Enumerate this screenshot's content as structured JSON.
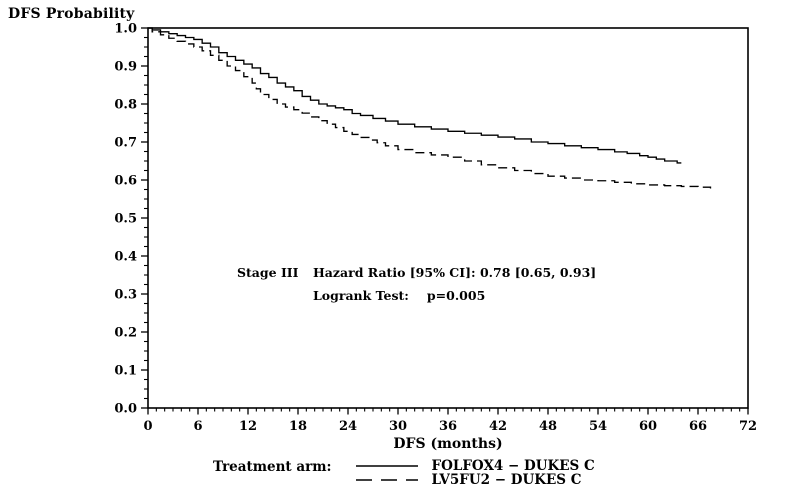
{
  "page": {
    "background": "#ffffff",
    "foreground": "#000000"
  },
  "chart_data": {
    "type": "line",
    "subtype": "kaplan-meier-step",
    "title": "DFS Probability",
    "xlabel": "DFS (months)",
    "ylabel": "DFS Probability",
    "xlim": [
      0,
      72
    ],
    "ylim": [
      0.0,
      1.0
    ],
    "x_major_ticks": [
      0,
      6,
      12,
      18,
      24,
      30,
      36,
      42,
      48,
      54,
      60,
      66,
      72
    ],
    "x_minor_step": 1,
    "y_tick_labels": [
      "1.0",
      "0.9",
      "0.8",
      "0.7",
      "0.6",
      "0.5",
      "0.4",
      "0.3",
      "0.2",
      "0.1",
      "0.0"
    ],
    "y_major_step": 0.1,
    "y_minor_step": 0.025,
    "grid": false,
    "frame": true,
    "legend_position": "bottom",
    "line_color": "#000000",
    "annotation": {
      "stage_label": "Stage III",
      "hazard_text": "Hazard Ratio [95% CI]: 0.78 [0.65, 0.93]",
      "logrank_label": "Logrank Test:",
      "logrank_value": "p=0.005"
    },
    "legend": {
      "title": "Treatment arm:",
      "entries": [
        {
          "label": "FOLFOX4 − DUKES C",
          "line_style": "solid"
        },
        {
          "label": "LV5FU2 − DUKES C",
          "line_style": "dashed"
        }
      ]
    },
    "series": [
      {
        "name": "FOLFOX4 − DUKES C",
        "id": "folfox4-curve",
        "style": "solid",
        "points": [
          [
            0,
            1.0
          ],
          [
            0.5,
            0.995
          ],
          [
            1.5,
            0.99
          ],
          [
            2.5,
            0.985
          ],
          [
            3.5,
            0.98
          ],
          [
            4.5,
            0.975
          ],
          [
            5.5,
            0.97
          ],
          [
            6.5,
            0.96
          ],
          [
            7.5,
            0.95
          ],
          [
            8.5,
            0.935
          ],
          [
            9.5,
            0.925
          ],
          [
            10.5,
            0.915
          ],
          [
            11.5,
            0.905
          ],
          [
            12.5,
            0.895
          ],
          [
            13.5,
            0.88
          ],
          [
            14.5,
            0.87
          ],
          [
            15.5,
            0.855
          ],
          [
            16.5,
            0.845
          ],
          [
            17.5,
            0.835
          ],
          [
            18.5,
            0.82
          ],
          [
            19.5,
            0.81
          ],
          [
            20.5,
            0.8
          ],
          [
            21.5,
            0.795
          ],
          [
            22.5,
            0.79
          ],
          [
            23.5,
            0.785
          ],
          [
            24.5,
            0.775
          ],
          [
            25.5,
            0.77
          ],
          [
            27,
            0.762
          ],
          [
            28.5,
            0.755
          ],
          [
            30,
            0.747
          ],
          [
            32,
            0.74
          ],
          [
            34,
            0.734
          ],
          [
            36,
            0.728
          ],
          [
            38,
            0.723
          ],
          [
            40,
            0.718
          ],
          [
            42,
            0.713
          ],
          [
            44,
            0.708
          ],
          [
            46,
            0.7
          ],
          [
            48,
            0.696
          ],
          [
            50,
            0.69
          ],
          [
            52,
            0.685
          ],
          [
            54,
            0.68
          ],
          [
            56,
            0.674
          ],
          [
            57.5,
            0.67
          ],
          [
            59,
            0.664
          ],
          [
            60,
            0.66
          ],
          [
            61,
            0.655
          ],
          [
            62,
            0.65
          ],
          [
            63.5,
            0.645
          ],
          [
            64,
            0.645
          ]
        ]
      },
      {
        "name": "LV5FU2 − DUKES C",
        "id": "lv5fu2-curve",
        "style": "dashed",
        "points": [
          [
            0,
            1.0
          ],
          [
            0.5,
            0.99
          ],
          [
            1.5,
            0.982
          ],
          [
            2.5,
            0.973
          ],
          [
            3.5,
            0.965
          ],
          [
            4.5,
            0.958
          ],
          [
            5.5,
            0.95
          ],
          [
            6.5,
            0.94
          ],
          [
            7.5,
            0.928
          ],
          [
            8.5,
            0.915
          ],
          [
            9.5,
            0.9
          ],
          [
            10.5,
            0.888
          ],
          [
            11.5,
            0.872
          ],
          [
            12.5,
            0.855
          ],
          [
            13,
            0.84
          ],
          [
            13.5,
            0.825
          ],
          [
            14.5,
            0.812
          ],
          [
            15.5,
            0.8
          ],
          [
            16.5,
            0.792
          ],
          [
            17.5,
            0.785
          ],
          [
            18.5,
            0.776
          ],
          [
            19.5,
            0.766
          ],
          [
            20.5,
            0.756
          ],
          [
            21.5,
            0.747
          ],
          [
            22.5,
            0.738
          ],
          [
            23.5,
            0.728
          ],
          [
            24.5,
            0.72
          ],
          [
            25.5,
            0.712
          ],
          [
            26.5,
            0.705
          ],
          [
            27.5,
            0.698
          ],
          [
            28.5,
            0.69
          ],
          [
            30,
            0.68
          ],
          [
            32,
            0.672
          ],
          [
            34,
            0.666
          ],
          [
            36,
            0.66
          ],
          [
            38,
            0.65
          ],
          [
            40,
            0.64
          ],
          [
            42,
            0.632
          ],
          [
            44,
            0.625
          ],
          [
            46,
            0.617
          ],
          [
            48,
            0.61
          ],
          [
            50,
            0.605
          ],
          [
            52,
            0.6
          ],
          [
            54,
            0.598
          ],
          [
            56,
            0.594
          ],
          [
            58,
            0.59
          ],
          [
            60,
            0.587
          ],
          [
            62,
            0.585
          ],
          [
            64,
            0.583
          ],
          [
            66,
            0.581
          ],
          [
            67.5,
            0.577
          ]
        ]
      }
    ]
  }
}
